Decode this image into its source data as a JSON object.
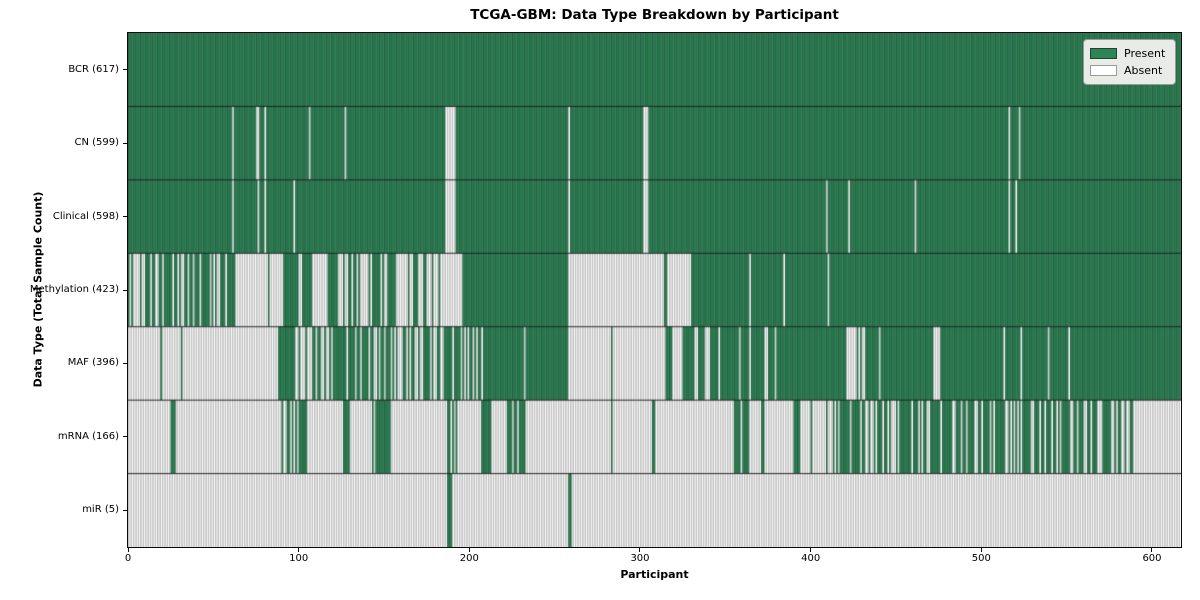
{
  "colors": {
    "present": "#2e8457",
    "absent": "#ffffff",
    "present_edge": "rgba(13,51,32,0.72)",
    "absent_edge": "rgba(134,134,134,0.95)",
    "row_divider": "rgba(22,22,22,0.9)",
    "plot_border": "#0a0a0a",
    "legend_bg": "#e9ebe6",
    "legend_border": "#9a9a9a"
  },
  "chart_data": {
    "type": "heatmap",
    "title": "TCGA-GBM: Data Type Breakdown by Participant",
    "xlabel": "Participant",
    "ylabel": "Data Type (Total Sample Count)",
    "xlim": [
      0,
      617
    ],
    "xticks": [
      0,
      100,
      200,
      300,
      400,
      500,
      600
    ],
    "legend": {
      "present_label": "Present",
      "absent_label": "Absent",
      "position": "upper right"
    },
    "value_states": [
      "Present",
      "Absent"
    ],
    "runs_format": "[start_participant, end_participant, present_fraction]; 1 = all present (green), 0 = all absent (white), fraction = approximate density of present bars in a mixed stretch",
    "rows": [
      {
        "label": "BCR (617)",
        "data_type": "BCR",
        "present_count": 617,
        "runs": [
          [
            0,
            617,
            1
          ]
        ]
      },
      {
        "label": "CN (599)",
        "data_type": "CN",
        "present_count": 599,
        "runs": [
          [
            0,
            61,
            1
          ],
          [
            61,
            62,
            0
          ],
          [
            62,
            75,
            1
          ],
          [
            75,
            77,
            0
          ],
          [
            77,
            80,
            1
          ],
          [
            80,
            81,
            0
          ],
          [
            81,
            106,
            1
          ],
          [
            106,
            107,
            0
          ],
          [
            107,
            127,
            1
          ],
          [
            127,
            128,
            0
          ],
          [
            128,
            186,
            1
          ],
          [
            186,
            192,
            0
          ],
          [
            192,
            258,
            1
          ],
          [
            258,
            259,
            0
          ],
          [
            259,
            302,
            1
          ],
          [
            302,
            305,
            0
          ],
          [
            305,
            516,
            1
          ],
          [
            516,
            517,
            0
          ],
          [
            517,
            522,
            1
          ],
          [
            522,
            523,
            0
          ],
          [
            523,
            617,
            1
          ]
        ]
      },
      {
        "label": "Clinical (598)",
        "data_type": "Clinical",
        "present_count": 598,
        "runs": [
          [
            0,
            61,
            1
          ],
          [
            61,
            62,
            0
          ],
          [
            62,
            76,
            1
          ],
          [
            76,
            77,
            0
          ],
          [
            77,
            80,
            1
          ],
          [
            80,
            81,
            0
          ],
          [
            81,
            97,
            1
          ],
          [
            97,
            98,
            0
          ],
          [
            98,
            186,
            1
          ],
          [
            186,
            192,
            0
          ],
          [
            192,
            258,
            1
          ],
          [
            258,
            259,
            0
          ],
          [
            259,
            302,
            1
          ],
          [
            302,
            305,
            0
          ],
          [
            305,
            409,
            1
          ],
          [
            409,
            410,
            0
          ],
          [
            410,
            422,
            1
          ],
          [
            422,
            423,
            0
          ],
          [
            423,
            461,
            1
          ],
          [
            461,
            462,
            0
          ],
          [
            462,
            516,
            1
          ],
          [
            516,
            517,
            0
          ],
          [
            517,
            520,
            1
          ],
          [
            520,
            521,
            0
          ],
          [
            521,
            617,
            1
          ]
        ]
      },
      {
        "label": "Methylation (423)",
        "data_type": "Methylation",
        "present_count": 423,
        "runs": [
          [
            0,
            58,
            0.62
          ],
          [
            58,
            63,
            1
          ],
          [
            63,
            90,
            0.06
          ],
          [
            90,
            108,
            0.85
          ],
          [
            108,
            117,
            0
          ],
          [
            117,
            152,
            0.45
          ],
          [
            152,
            157,
            1
          ],
          [
            157,
            186,
            0.25
          ],
          [
            186,
            196,
            0
          ],
          [
            196,
            258,
            1
          ],
          [
            258,
            314,
            0
          ],
          [
            314,
            316,
            1
          ],
          [
            316,
            330,
            0
          ],
          [
            330,
            410,
            0.93
          ],
          [
            410,
            411,
            0
          ],
          [
            411,
            617,
            1
          ]
        ]
      },
      {
        "label": "MAF (396)",
        "data_type": "MAF",
        "present_count": 396,
        "runs": [
          [
            0,
            19,
            0
          ],
          [
            19,
            20,
            1
          ],
          [
            20,
            31,
            0
          ],
          [
            31,
            32,
            1
          ],
          [
            32,
            88,
            0
          ],
          [
            88,
            98,
            1
          ],
          [
            98,
            100,
            0
          ],
          [
            100,
            208,
            0.7
          ],
          [
            208,
            232,
            1
          ],
          [
            232,
            233,
            0
          ],
          [
            233,
            258,
            1
          ],
          [
            258,
            283,
            0
          ],
          [
            283,
            284,
            1
          ],
          [
            284,
            315,
            0
          ],
          [
            315,
            345,
            0.55
          ],
          [
            345,
            380,
            0.85
          ],
          [
            380,
            421,
            1
          ],
          [
            421,
            434,
            0.3
          ],
          [
            434,
            440,
            1
          ],
          [
            440,
            441,
            0
          ],
          [
            441,
            472,
            1
          ],
          [
            472,
            476,
            0
          ],
          [
            476,
            513,
            1
          ],
          [
            513,
            514,
            0
          ],
          [
            514,
            523,
            1
          ],
          [
            523,
            524,
            0
          ],
          [
            524,
            539,
            1
          ],
          [
            539,
            540,
            0
          ],
          [
            540,
            551,
            1
          ],
          [
            551,
            552,
            0
          ],
          [
            552,
            617,
            1
          ]
        ]
      },
      {
        "label": "mRNA (166)",
        "data_type": "mRNA",
        "present_count": 166,
        "runs": [
          [
            0,
            25,
            0
          ],
          [
            25,
            28,
            1
          ],
          [
            28,
            90,
            0
          ],
          [
            90,
            105,
            0.7
          ],
          [
            105,
            126,
            0
          ],
          [
            126,
            130,
            1
          ],
          [
            130,
            142,
            0
          ],
          [
            142,
            155,
            0.6
          ],
          [
            155,
            187,
            0
          ],
          [
            187,
            193,
            0.5
          ],
          [
            193,
            207,
            0
          ],
          [
            207,
            213,
            1
          ],
          [
            213,
            222,
            0
          ],
          [
            222,
            233,
            0.7
          ],
          [
            233,
            283,
            0
          ],
          [
            283,
            284,
            1
          ],
          [
            284,
            307,
            0
          ],
          [
            307,
            309,
            1
          ],
          [
            309,
            355,
            0
          ],
          [
            355,
            364,
            0.67
          ],
          [
            364,
            371,
            0
          ],
          [
            371,
            373,
            1
          ],
          [
            373,
            390,
            0
          ],
          [
            390,
            394,
            1
          ],
          [
            394,
            415,
            0.25
          ],
          [
            415,
            590,
            0.57
          ],
          [
            590,
            617,
            0
          ]
        ]
      },
      {
        "label": "miR (5)",
        "data_type": "miR",
        "present_count": 5,
        "runs": [
          [
            0,
            187,
            0
          ],
          [
            187,
            190,
            1
          ],
          [
            190,
            258,
            0
          ],
          [
            258,
            260,
            1
          ],
          [
            260,
            617,
            0
          ]
        ]
      }
    ]
  }
}
